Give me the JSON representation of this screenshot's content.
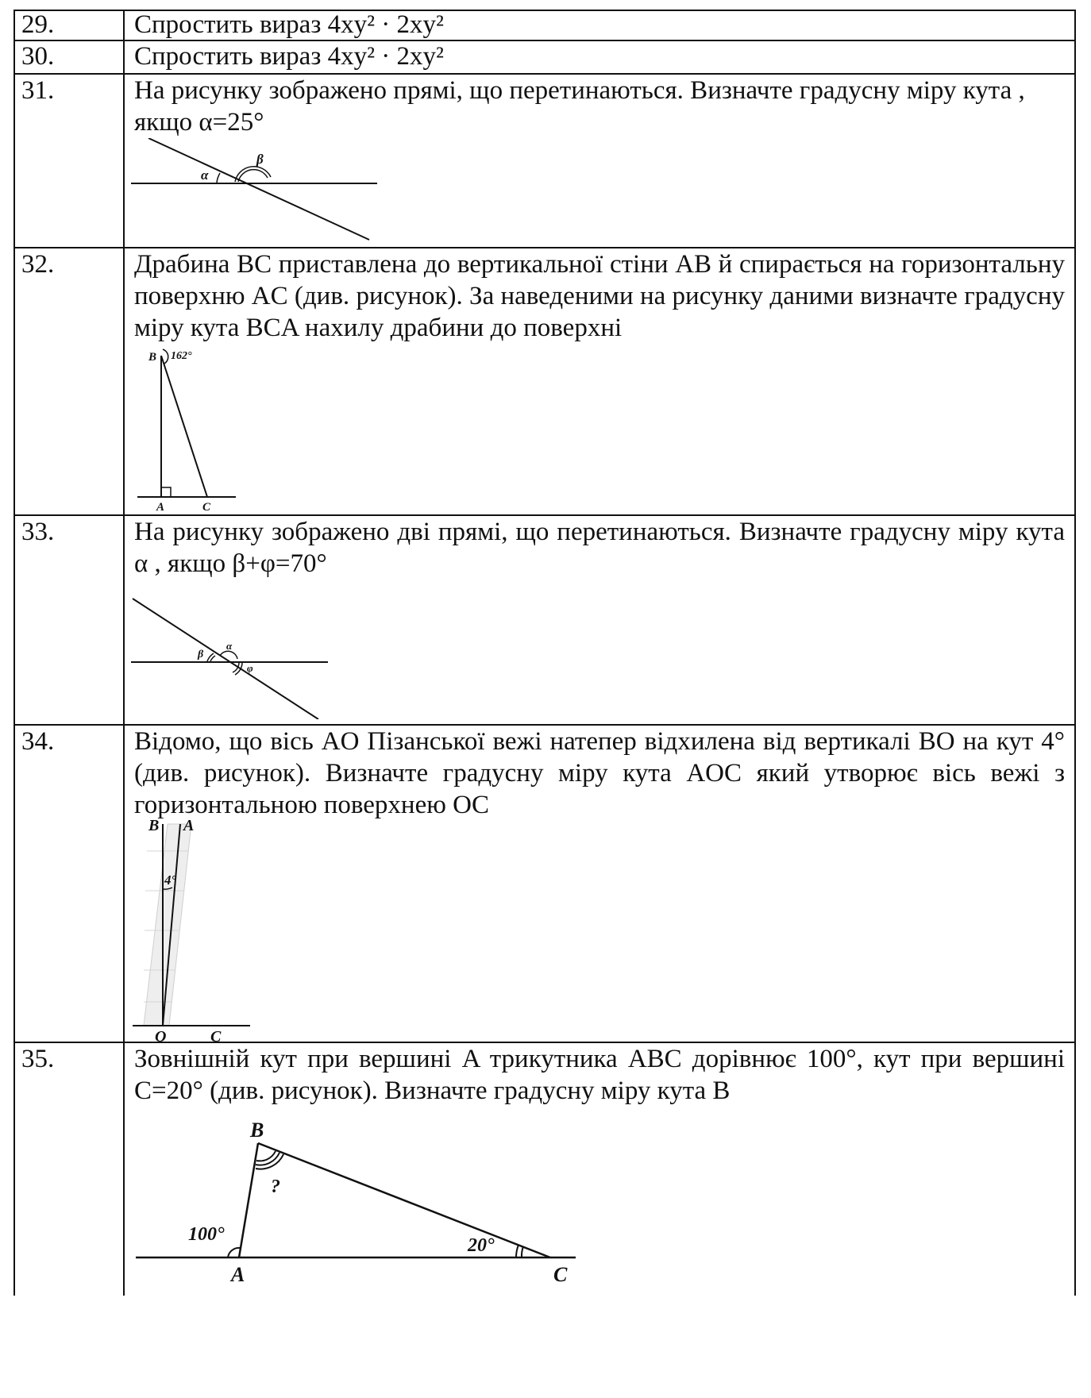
{
  "rows": [
    {
      "number": "29.",
      "text": "Спростить вираз 4xy² · 2xy²"
    },
    {
      "number": "30.",
      "text": "Спростить вираз 4xy² · 2xy²"
    },
    {
      "number": "31.",
      "text": "На рисунку зображено прямі, що перетинаються. Визначте градусну міру кута , якщо α=25°",
      "figure": {
        "labels": [
          "α",
          "β"
        ]
      }
    },
    {
      "number": "32.",
      "text": "Драбина BC приставлена до вертикальної стіни AB й спирається на горизонтальну поверхню AC (див. рисунок). За наведеними на рисунку даними визначте градусну міру кута BCA нахилу драбини до поверхні",
      "figure": {
        "labels": [
          "B",
          "162°",
          "A",
          "C"
        ]
      }
    },
    {
      "number": "33.",
      "text": "На рисунку зображено дві прямі, що перетинаються. Визначте градусну міру кута α , якщо β+φ=70°",
      "figure": {
        "labels": [
          "β",
          "α",
          "φ"
        ]
      }
    },
    {
      "number": "34.",
      "text": "Відомо, що вісь AO Пізанської вежі натепер відхилена від вертикалі BO на кут 4° (див. рисунок). Визначте градусну міру кута AOC який утворює вісь вежі з горизонтальною поверхнею OC",
      "figure": {
        "labels": [
          "B",
          "A",
          "4°",
          "O",
          "C"
        ]
      }
    },
    {
      "number": "35.",
      "text": "Зовнішній кут при вершині A трикутника ABC дорівнює 100°, кут при вершині C=20° (див. рисунок). Визначте градусну міру кута B",
      "figure": {
        "labels": [
          "B",
          "?",
          "100°",
          "20°",
          "A",
          "C"
        ]
      }
    }
  ]
}
